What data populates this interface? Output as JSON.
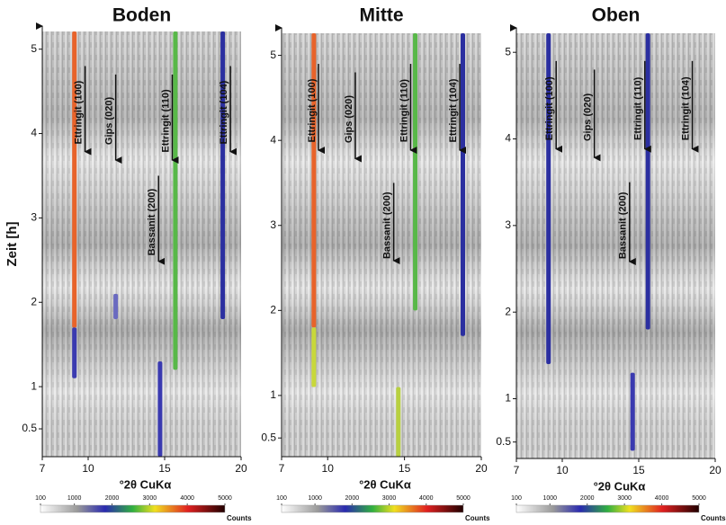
{
  "chart_data": [
    {
      "type": "heatmap",
      "title": "Boden",
      "ylabel": "Zeit [h]",
      "xlabel": "°2θ CuKα",
      "xlim": [
        7,
        20
      ],
      "ylim": [
        0.17,
        5.21
      ],
      "xticks": [
        7,
        10,
        15,
        20
      ],
      "yticks": [
        0.5,
        1,
        2,
        3,
        4,
        5
      ],
      "peaks": [
        {
          "x": 9.1,
          "y": [
            1.7,
            5.21
          ],
          "color": "#e8632a"
        },
        {
          "x": 9.1,
          "y": [
            1.1,
            1.7
          ],
          "color": "#3a3ab0"
        },
        {
          "x": 15.7,
          "y": [
            1.2,
            5.21
          ],
          "color": "#58b848"
        },
        {
          "x": 18.8,
          "y": [
            1.8,
            5.21
          ],
          "color": "#2b2fa0"
        },
        {
          "x": 14.7,
          "y": [
            0.17,
            1.3
          ],
          "color": "#3a3ab0"
        },
        {
          "x": 11.8,
          "y": [
            1.8,
            2.1
          ],
          "color": "#6a6ac0"
        }
      ],
      "annotations": [
        {
          "text": "Ettringit (100)",
          "x": 9.8,
          "y": [
            4.8,
            3.7
          ]
        },
        {
          "text": "Gips (020)",
          "x": 11.8,
          "y": [
            4.7,
            3.6
          ]
        },
        {
          "text": "Ettringit (110)",
          "x": 15.5,
          "y": [
            4.7,
            3.6
          ]
        },
        {
          "text": "Ettringit (104)",
          "x": 19.3,
          "y": [
            4.8,
            3.7
          ]
        },
        {
          "text": "Bassanit (200)",
          "x": 14.6,
          "y": [
            3.5,
            2.4
          ]
        }
      ],
      "colorbar": {
        "ticks": [
          100,
          1000,
          2000,
          3000,
          4000,
          5000
        ],
        "label": "Counts"
      }
    },
    {
      "type": "heatmap",
      "title": "Mitte",
      "xlabel": "°2θ CuKα",
      "xlim": [
        7,
        20
      ],
      "ylim": [
        0.28,
        5.26
      ],
      "xticks": [
        7,
        10,
        15,
        20
      ],
      "yticks": [
        0.5,
        1,
        2,
        3,
        4,
        5
      ],
      "peaks": [
        {
          "x": 9.1,
          "y": [
            1.8,
            5.26
          ],
          "color": "#e8632a"
        },
        {
          "x": 9.1,
          "y": [
            1.1,
            1.8
          ],
          "color": "#c8d83a"
        },
        {
          "x": 15.7,
          "y": [
            2.0,
            5.26
          ],
          "color": "#58b848"
        },
        {
          "x": 18.8,
          "y": [
            1.7,
            5.26
          ],
          "color": "#2b2fa0"
        },
        {
          "x": 14.6,
          "y": [
            0.28,
            1.1
          ],
          "color": "#b8d040"
        }
      ],
      "annotations": [
        {
          "text": "Ettringit (100)",
          "x": 9.4,
          "y": [
            4.9,
            3.8
          ]
        },
        {
          "text": "Gips (020)",
          "x": 11.8,
          "y": [
            4.8,
            3.7
          ]
        },
        {
          "text": "Ettringit (110)",
          "x": 15.4,
          "y": [
            4.9,
            3.8
          ]
        },
        {
          "text": "Ettringit (104)",
          "x": 18.6,
          "y": [
            4.9,
            3.8
          ]
        },
        {
          "text": "Bassanit (200)",
          "x": 14.3,
          "y": [
            3.5,
            2.5
          ]
        }
      ],
      "colorbar": {
        "ticks": [
          100,
          1000,
          2000,
          3000,
          4000,
          5000
        ],
        "label": "Counts"
      }
    },
    {
      "type": "heatmap",
      "title": "Oben",
      "xlabel": "°2θ CuKα",
      "xlim": [
        7,
        20
      ],
      "ylim": [
        0.31,
        5.22
      ],
      "xticks": [
        7,
        10,
        15,
        20
      ],
      "yticks": [
        0.5,
        1,
        2,
        3,
        4,
        5
      ],
      "peaks": [
        {
          "x": 9.1,
          "y": [
            1.4,
            5.22
          ],
          "color": "#2b2fa0"
        },
        {
          "x": 15.6,
          "y": [
            1.8,
            5.22
          ],
          "color": "#2b2fa0"
        },
        {
          "x": 14.6,
          "y": [
            0.4,
            1.3
          ],
          "color": "#3a3ab0"
        }
      ],
      "annotations": [
        {
          "text": "Ettringit (100)",
          "x": 9.6,
          "y": [
            4.9,
            3.8
          ]
        },
        {
          "text": "Gips (020)",
          "x": 12.1,
          "y": [
            4.8,
            3.7
          ]
        },
        {
          "text": "Ettringit (110)",
          "x": 15.4,
          "y": [
            4.9,
            3.8
          ]
        },
        {
          "text": "Ettringit (104)",
          "x": 18.5,
          "y": [
            4.9,
            3.8
          ]
        },
        {
          "text": "Bassanit (200)",
          "x": 14.4,
          "y": [
            3.5,
            2.5
          ]
        }
      ],
      "colorbar": {
        "ticks": [
          100,
          1000,
          2000,
          3000,
          4000,
          5000
        ],
        "label": "Counts"
      }
    }
  ]
}
